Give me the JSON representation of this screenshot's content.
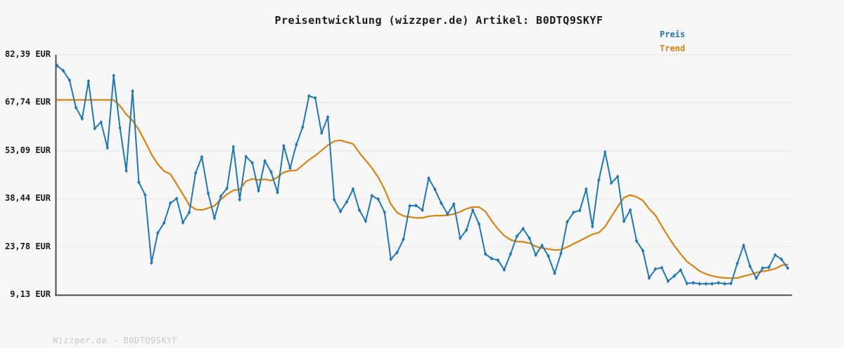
{
  "header": {
    "title": "Preisentwicklung (wizzper.de) Artikel: B0DTQ9SKYF"
  },
  "watermark": "Wizzper.de - B0DTQ9SKYF",
  "colors": {
    "background": "#f7f7f7",
    "price": "#1f77b4",
    "trend": "#d9820f",
    "grid": "#e6e6e6",
    "spine": "#4d4d4d",
    "title_text": "#1a1a1a",
    "tick_text": "#1a1a1a",
    "watermark_text": "#c9c9c9"
  },
  "chart_data": {
    "type": "line",
    "title": "Preisentwicklung (wizzper.de) Artikel: B0DTQ9SKYF",
    "xlabel": "",
    "ylabel": "",
    "x_tick_labels": [],
    "ylim": [
      9.13,
      82.39
    ],
    "grid": "horizontal",
    "legend_position": "top-right",
    "yticks": {
      "labels": [
        "82,39 EUR",
        "67,74 EUR",
        "53,09 EUR",
        "38,44 EUR",
        "23,78 EUR",
        "9,13 EUR"
      ],
      "values": [
        82.39,
        67.74,
        53.09,
        38.44,
        23.78,
        9.13
      ]
    },
    "currency": "EUR",
    "series": [
      {
        "name": "Preis",
        "color": "#1f77b4",
        "marker": "diamond",
        "values": [
          79.1,
          77.5,
          74.6,
          66.3,
          62.9,
          74.3,
          59.9,
          61.8,
          54.0,
          76.0,
          60.1,
          47.0,
          71.3,
          43.5,
          39.6,
          18.9,
          28.0,
          31.1,
          37.1,
          38.5,
          31.2,
          34.3,
          46.3,
          51.2,
          40.1,
          32.5,
          39.2,
          41.7,
          54.3,
          38.2,
          51.3,
          49.4,
          40.9,
          50.0,
          46.6,
          40.4,
          54.6,
          47.8,
          55.0,
          60.3,
          69.8,
          69.2,
          58.5,
          63.4,
          38.2,
          34.6,
          37.5,
          41.4,
          35.0,
          31.6,
          39.4,
          38.3,
          34.3,
          20.0,
          22.1,
          26.1,
          36.3,
          36.4,
          35.0,
          44.7,
          41.3,
          37.1,
          33.8,
          36.8,
          26.4,
          28.9,
          35.0,
          30.7,
          21.6,
          20.2,
          19.7,
          16.8,
          21.6,
          27.0,
          29.3,
          26.4,
          21.3,
          24.2,
          21.0,
          15.7,
          21.8,
          31.4,
          34.3,
          34.9,
          41.4,
          30.0,
          44.1,
          52.7,
          43.3,
          45.2,
          31.6,
          35.0,
          25.6,
          22.6,
          14.3,
          17.0,
          17.4,
          13.3,
          14.9,
          16.7,
          12.6,
          12.8,
          12.5,
          12.5,
          12.5,
          12.8,
          12.5,
          12.6,
          18.7,
          24.2,
          17.9,
          14.2,
          17.3,
          17.5,
          21.3,
          20.0,
          17.3
        ]
      },
      {
        "name": "Trend",
        "color": "#d9820f",
        "marker": "none",
        "values": [
          68.6,
          68.6,
          68.6,
          68.6,
          68.6,
          68.6,
          68.6,
          68.6,
          68.6,
          68.6,
          66.8,
          64.2,
          62.3,
          59.5,
          55.9,
          52.0,
          49.0,
          46.9,
          46.0,
          42.9,
          39.8,
          36.5,
          35.2,
          35.0,
          35.6,
          36.3,
          38.2,
          39.8,
          41.0,
          41.3,
          43.8,
          44.5,
          44.2,
          44.4,
          44.0,
          45.0,
          46.5,
          47.0,
          47.1,
          48.7,
          50.3,
          51.6,
          53.2,
          54.8,
          56.0,
          56.3,
          55.7,
          55.2,
          52.5,
          50.2,
          47.8,
          45.0,
          41.3,
          36.8,
          34.2,
          33.2,
          32.9,
          32.6,
          32.6,
          33.1,
          33.3,
          33.3,
          33.4,
          33.8,
          34.5,
          35.4,
          35.9,
          35.9,
          34.6,
          31.7,
          29.2,
          27.2,
          25.9,
          25.4,
          25.3,
          24.9,
          23.9,
          23.4,
          23.1,
          22.8,
          22.9,
          23.7,
          24.7,
          25.6,
          26.6,
          27.6,
          28.1,
          29.9,
          33.0,
          36.0,
          38.8,
          39.6,
          39.0,
          37.9,
          35.4,
          33.4,
          30.1,
          27.0,
          24.1,
          21.6,
          19.3,
          17.9,
          16.4,
          15.5,
          14.9,
          14.5,
          14.3,
          14.2,
          14.3,
          14.8,
          15.3,
          15.9,
          16.3,
          16.6,
          17.1,
          18.1,
          18.4
        ]
      }
    ]
  }
}
